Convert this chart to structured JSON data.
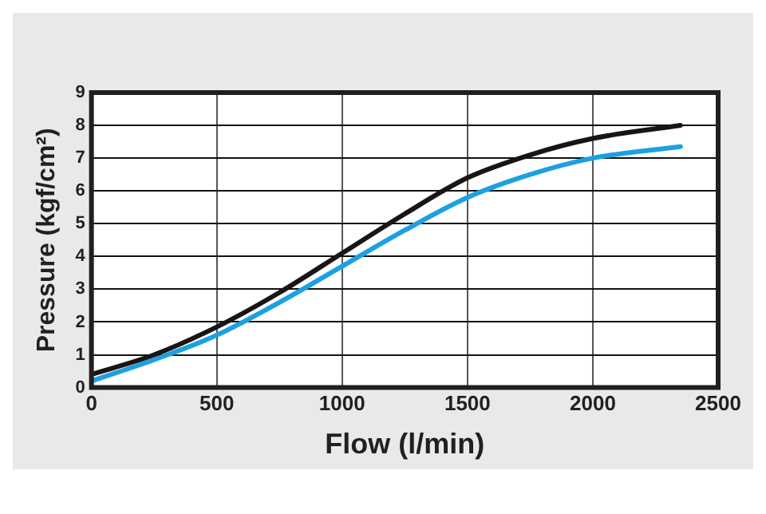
{
  "chart_data": {
    "type": "line",
    "xlabel": "Flow (l/min)",
    "ylabel": "Pressure (kgf/cm²)",
    "xlim": [
      0,
      2500
    ],
    "xticks": [
      0,
      500,
      1000,
      1500,
      2000,
      2500
    ],
    "ylim": [
      0,
      9
    ],
    "yticks": [
      0,
      1,
      2,
      3,
      4,
      5,
      6,
      7,
      8,
      9
    ],
    "grid": true,
    "legend": false,
    "marker": "none",
    "line_style": "solid",
    "series": [
      {
        "color": "#1a1414",
        "x": [
          0,
          250,
          500,
          750,
          1000,
          1250,
          1500,
          1750,
          2000,
          2350
        ],
        "values": [
          0.4,
          1.0,
          1.85,
          2.9,
          4.1,
          5.3,
          6.4,
          7.1,
          7.6,
          8.0
        ]
      },
      {
        "color": "#1ba1e2",
        "x": [
          0,
          250,
          500,
          750,
          1000,
          1250,
          1500,
          1750,
          2000,
          2350
        ],
        "values": [
          0.2,
          0.85,
          1.6,
          2.6,
          3.7,
          4.8,
          5.8,
          6.5,
          7.0,
          7.35
        ]
      }
    ]
  }
}
